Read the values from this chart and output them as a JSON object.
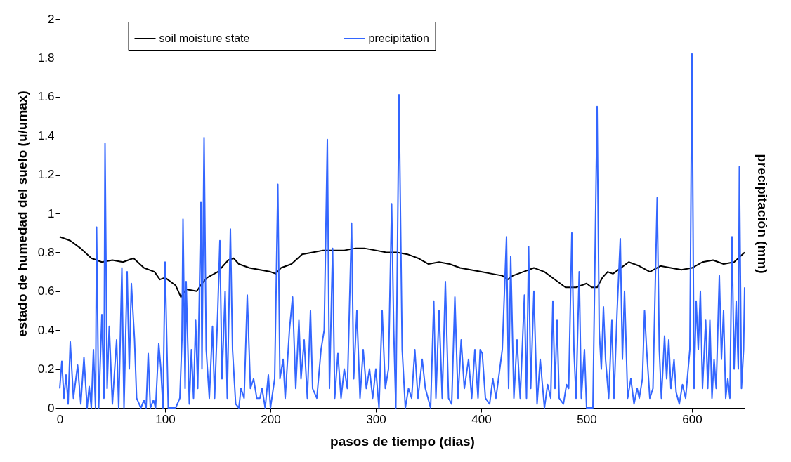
{
  "chart_data": {
    "type": "line",
    "xlabel": "pasos de tiempo (días)",
    "ylabel": "estado de humedad del suelo (u/umax)",
    "y2label": "precipitación (mm)",
    "xlim": [
      0,
      650
    ],
    "xticks": [
      0,
      100,
      200,
      300,
      400,
      500,
      600
    ],
    "ylim": [
      0,
      2
    ],
    "yticks": [
      0,
      0.2,
      0.4,
      0.6,
      0.8,
      1,
      1.2,
      1.4,
      1.6,
      1.8,
      2
    ],
    "grid": false,
    "legend": "top",
    "line_style": "solid",
    "marker": "none",
    "series": [
      {
        "name": "soil moisture state",
        "color": "#000000",
        "x": [
          0,
          10,
          20,
          30,
          40,
          50,
          60,
          70,
          80,
          90,
          95,
          100,
          110,
          115,
          120,
          130,
          135,
          140,
          150,
          160,
          165,
          170,
          180,
          190,
          200,
          205,
          210,
          220,
          230,
          240,
          250,
          260,
          270,
          280,
          290,
          300,
          310,
          320,
          330,
          340,
          350,
          360,
          370,
          380,
          390,
          400,
          410,
          420,
          425,
          430,
          440,
          450,
          460,
          470,
          480,
          490,
          500,
          505,
          510,
          515,
          520,
          525,
          530,
          540,
          550,
          560,
          570,
          580,
          590,
          600,
          610,
          620,
          630,
          640,
          650
        ],
        "values": [
          0.88,
          0.86,
          0.82,
          0.77,
          0.75,
          0.76,
          0.75,
          0.77,
          0.72,
          0.7,
          0.66,
          0.67,
          0.63,
          0.57,
          0.61,
          0.6,
          0.64,
          0.67,
          0.7,
          0.76,
          0.77,
          0.74,
          0.72,
          0.71,
          0.7,
          0.69,
          0.72,
          0.74,
          0.79,
          0.8,
          0.81,
          0.81,
          0.81,
          0.82,
          0.82,
          0.81,
          0.8,
          0.8,
          0.79,
          0.77,
          0.74,
          0.75,
          0.74,
          0.72,
          0.71,
          0.7,
          0.69,
          0.68,
          0.66,
          0.68,
          0.7,
          0.72,
          0.7,
          0.66,
          0.62,
          0.62,
          0.64,
          0.62,
          0.62,
          0.67,
          0.7,
          0.69,
          0.71,
          0.75,
          0.73,
          0.7,
          0.73,
          0.72,
          0.71,
          0.72,
          0.75,
          0.76,
          0.74,
          0.75,
          0.8
        ]
      },
      {
        "name": "precipitation",
        "color": "#3366ff",
        "x": [
          0,
          2,
          4,
          6,
          8,
          10,
          13,
          17,
          20,
          23,
          26,
          28,
          30,
          32,
          34,
          35,
          37,
          40,
          42,
          43,
          45,
          47,
          50,
          54,
          56,
          59,
          61,
          64,
          66,
          68,
          71,
          73,
          77,
          80,
          82,
          84,
          86,
          89,
          91,
          94,
          96,
          98,
          100,
          103,
          110,
          114,
          116,
          117,
          119,
          120,
          123,
          125,
          127,
          129,
          131,
          134,
          135,
          137,
          139,
          142,
          145,
          147,
          150,
          152,
          154,
          157,
          159,
          162,
          164,
          167,
          170,
          172,
          175,
          178,
          181,
          184,
          187,
          190,
          192,
          195,
          198,
          200,
          204,
          207,
          209,
          212,
          214,
          218,
          221,
          224,
          227,
          229,
          232,
          235,
          238,
          240,
          244,
          248,
          251,
          254,
          256,
          259,
          261,
          264,
          267,
          270,
          273,
          277,
          279,
          282,
          285,
          288,
          291,
          294,
          297,
          300,
          303,
          306,
          309,
          312,
          315,
          317,
          319,
          322,
          325,
          328,
          331,
          334,
          337,
          340,
          344,
          347,
          352,
          355,
          357,
          360,
          363,
          366,
          369,
          372,
          375,
          378,
          381,
          384,
          388,
          391,
          394,
          397,
          399,
          401,
          404,
          408,
          411,
          414,
          420,
          424,
          426,
          428,
          431,
          434,
          437,
          441,
          443,
          445,
          447,
          450,
          453,
          456,
          460,
          463,
          466,
          468,
          470,
          472,
          474,
          478,
          481,
          483,
          486,
          488,
          490,
          493,
          495,
          498,
          500,
          506,
          510,
          512,
          514,
          516,
          518,
          521,
          524,
          526,
          529,
          532,
          534,
          536,
          539,
          542,
          545,
          548,
          550,
          553,
          555,
          557,
          560,
          563,
          567,
          569,
          571,
          574,
          576,
          578,
          580,
          583,
          585,
          588,
          591,
          594,
          598,
          600,
          602,
          604,
          606,
          608,
          610,
          613,
          615,
          617,
          619,
          621,
          623,
          626,
          628,
          630,
          632,
          634,
          636,
          638,
          640,
          642,
          644,
          645,
          647,
          649,
          650
        ],
        "values": [
          0.1,
          0.24,
          0.05,
          0.17,
          0.02,
          0.34,
          0.05,
          0.22,
          0.02,
          0.26,
          0,
          0.11,
          0,
          0.3,
          0,
          0.93,
          0,
          0.48,
          0.05,
          1.36,
          0.1,
          0.42,
          0.02,
          0.35,
          0,
          0.72,
          0,
          0.7,
          0.2,
          0.64,
          0.35,
          0.05,
          0,
          0.04,
          0,
          0.28,
          0,
          0.04,
          0,
          0.33,
          0.2,
          0,
          0.75,
          0,
          0,
          0.05,
          0.35,
          0.97,
          0.1,
          0.65,
          0.02,
          0.3,
          0.05,
          0.45,
          0.1,
          1.06,
          0.2,
          1.39,
          0.3,
          0.05,
          0.42,
          0.05,
          0.5,
          0.86,
          0.15,
          0.6,
          0.05,
          0.92,
          0.3,
          0.02,
          0,
          0.1,
          0.05,
          0.58,
          0.1,
          0.15,
          0.05,
          0.05,
          0.1,
          0,
          0.17,
          0,
          0.15,
          1.15,
          0.15,
          0.25,
          0.05,
          0.4,
          0.57,
          0.1,
          0.45,
          0.15,
          0.35,
          0.05,
          0.5,
          0.1,
          0.05,
          0.3,
          0.4,
          1.38,
          0.1,
          0.82,
          0.05,
          0.28,
          0.05,
          0.2,
          0.1,
          0.95,
          0.15,
          0.5,
          0.05,
          0.3,
          0.1,
          0.2,
          0.05,
          0.2,
          0,
          0.5,
          0.1,
          0.2,
          1.05,
          0.4,
          0,
          1.61,
          0.3,
          0,
          0.1,
          0.05,
          0.3,
          0.05,
          0.25,
          0.1,
          0,
          0.55,
          0.05,
          0.5,
          0.05,
          0.65,
          0.05,
          0.02,
          0.57,
          0.05,
          0.35,
          0.1,
          0.25,
          0.05,
          0.3,
          0.05,
          0.3,
          0.28,
          0.05,
          0.02,
          0.15,
          0.05,
          0.3,
          0.88,
          0.1,
          0.78,
          0.05,
          0.35,
          0.05,
          0.58,
          0.05,
          0.83,
          0.1,
          0.6,
          0.02,
          0.25,
          0,
          0.12,
          0.05,
          0.55,
          0.1,
          0.45,
          0.05,
          0.02,
          0.12,
          0.1,
          0.9,
          0.3,
          0.05,
          0.7,
          0.05,
          0.3,
          0,
          0,
          1.55,
          0.4,
          0.2,
          0.52,
          0.25,
          0.05,
          0.45,
          0.05,
          0.5,
          0.87,
          0.25,
          0.6,
          0.05,
          0.15,
          0.02,
          0.1,
          0.05,
          0.15,
          0.5,
          0.3,
          0.05,
          0.1,
          1.08,
          0.3,
          0.05,
          0.37,
          0.15,
          0.35,
          0.1,
          0.25,
          0.08,
          0.02,
          0.12,
          0.05,
          0.3,
          1.82,
          0.1,
          0.55,
          0.3,
          0.6,
          0.1,
          0.45,
          0.1,
          0.45,
          0.05,
          0.25,
          0.1,
          0.68,
          0.25,
          0.5,
          0.05,
          0.15,
          0.05,
          0.88,
          0.2,
          0.55,
          0.2,
          1.24,
          0.1,
          0.3,
          0.62
        ]
      }
    ]
  }
}
